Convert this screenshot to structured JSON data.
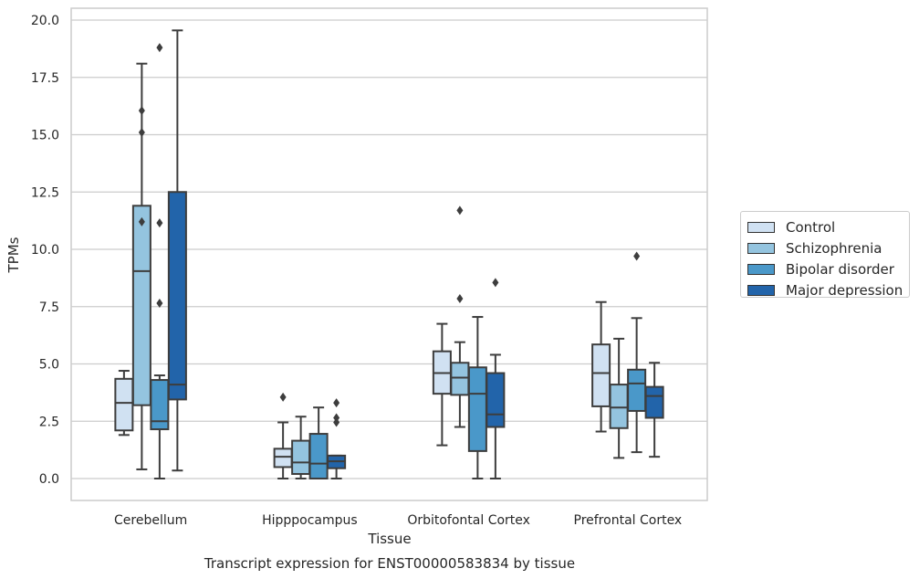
{
  "chart_data": {
    "type": "box",
    "title": "Transcript expression for ENST00000583834 by tissue",
    "xlabel": "Tissue",
    "ylabel": "TPMs",
    "ylim": [
      -0.95,
      20.7
    ],
    "yticks": [
      "0.0",
      "2.5",
      "5.0",
      "7.5",
      "10.0",
      "12.5",
      "15.0",
      "17.5",
      "20.0"
    ],
    "grid": "horizontal",
    "legend_position": "right",
    "categories": [
      "Cerebellum",
      "Hipppocampus",
      "Orbitofontal Cortex",
      "Prefrontal Cortex"
    ],
    "series": [
      {
        "name": "Control",
        "color": "#d0e1f2",
        "boxes": [
          {
            "whislo": 1.9,
            "q1": 2.1,
            "med": 3.3,
            "q3": 4.35,
            "whishi": 4.7,
            "fliers": []
          },
          {
            "whislo": 0.0,
            "q1": 0.5,
            "med": 0.95,
            "q3": 1.3,
            "whishi": 2.45,
            "fliers": [
              3.55
            ]
          },
          {
            "whislo": 1.45,
            "q1": 3.7,
            "med": 4.6,
            "q3": 5.55,
            "whishi": 6.75,
            "fliers": []
          },
          {
            "whislo": 2.05,
            "q1": 3.15,
            "med": 4.6,
            "q3": 5.85,
            "whishi": 7.7,
            "fliers": []
          }
        ]
      },
      {
        "name": "Schizophrenia",
        "color": "#94c4df",
        "boxes": [
          {
            "whislo": 0.4,
            "q1": 3.2,
            "med": 9.05,
            "q3": 11.9,
            "whishi": 18.1,
            "fliers": [
              11.2,
              15.1,
              16.05
            ]
          },
          {
            "whislo": 0.0,
            "q1": 0.2,
            "med": 0.7,
            "q3": 1.65,
            "whishi": 2.7,
            "fliers": []
          },
          {
            "whislo": 2.25,
            "q1": 3.65,
            "med": 4.4,
            "q3": 5.05,
            "whishi": 5.95,
            "fliers": [
              7.85,
              11.7
            ]
          },
          {
            "whislo": 0.9,
            "q1": 2.2,
            "med": 3.1,
            "q3": 4.1,
            "whishi": 6.1,
            "fliers": []
          }
        ]
      },
      {
        "name": "Bipolar disorder",
        "color": "#4a98c9",
        "boxes": [
          {
            "whislo": 0.0,
            "q1": 2.15,
            "med": 2.5,
            "q3": 4.3,
            "whishi": 4.5,
            "fliers": [
              7.65,
              11.15,
              18.8
            ]
          },
          {
            "whislo": 0.0,
            "q1": 0.0,
            "med": 0.65,
            "q3": 1.95,
            "whishi": 3.1,
            "fliers": []
          },
          {
            "whislo": 0.0,
            "q1": 1.2,
            "med": 3.7,
            "q3": 4.85,
            "whishi": 7.05,
            "fliers": []
          },
          {
            "whislo": 1.15,
            "q1": 2.95,
            "med": 4.15,
            "q3": 4.75,
            "whishi": 7.0,
            "fliers": [
              9.7
            ]
          }
        ]
      },
      {
        "name": "Major depression",
        "color": "#2264aa",
        "boxes": [
          {
            "whislo": 0.35,
            "q1": 3.45,
            "med": 4.1,
            "q3": 12.5,
            "whishi": 19.55,
            "fliers": []
          },
          {
            "whislo": 0.0,
            "q1": 0.45,
            "med": 0.75,
            "q3": 1.0,
            "whishi": 1.0,
            "fliers": [
              2.45,
              2.65,
              3.3
            ]
          },
          {
            "whislo": 0.0,
            "q1": 2.25,
            "med": 2.8,
            "q3": 4.6,
            "whishi": 5.4,
            "fliers": [
              8.55
            ]
          },
          {
            "whislo": 0.95,
            "q1": 2.65,
            "med": 3.6,
            "q3": 4.0,
            "whishi": 5.05,
            "fliers": []
          }
        ]
      }
    ]
  }
}
